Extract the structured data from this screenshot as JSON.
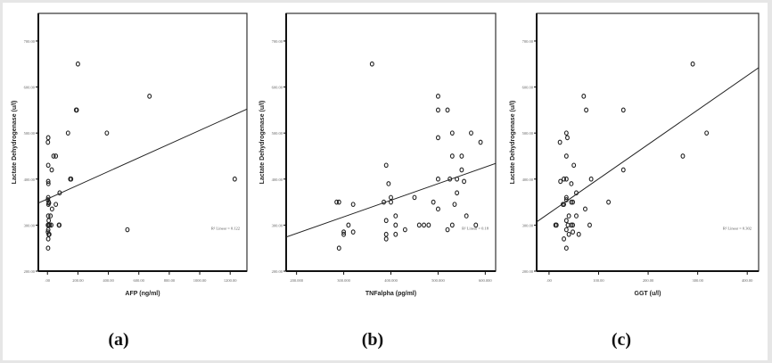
{
  "figure": {
    "captions": [
      "(a)",
      "(b)",
      "(c)"
    ]
  },
  "chart_data": [
    {
      "type": "scatter",
      "title": "",
      "panel": "(a)",
      "xlabel": "AFP (ng/ml)",
      "ylabel": "Lactate Dehydrogenase (u/l)",
      "xlim": [
        -60,
        1310
      ],
      "ylim": [
        200,
        760
      ],
      "xticks": [
        0,
        200,
        400,
        600,
        800,
        1000,
        1200
      ],
      "xtick_labels": [
        ".00",
        "200.00",
        "400.00",
        "600.00",
        "800.00",
        "1000.00",
        "1200.00"
      ],
      "yticks": [
        200,
        300,
        400,
        500,
        600,
        700
      ],
      "ytick_labels": [
        "200.00",
        "300.00",
        "400.00",
        "500.00",
        "600.00",
        "700.00"
      ],
      "annotation": "R² Linear = 0.122",
      "fit_line": {
        "x": [
          -60,
          1310
        ],
        "y": [
          348,
          552
        ]
      },
      "points": [
        [
          200,
          650
        ],
        [
          670,
          580
        ],
        [
          188,
          550
        ],
        [
          192,
          550
        ],
        [
          135,
          500
        ],
        [
          390,
          500
        ],
        [
          525,
          290
        ],
        [
          1230,
          400
        ],
        [
          5,
          490
        ],
        [
          3,
          480
        ],
        [
          40,
          450
        ],
        [
          55,
          450
        ],
        [
          28,
          420
        ],
        [
          5,
          430
        ],
        [
          150,
          400
        ],
        [
          155,
          400
        ],
        [
          5,
          395
        ],
        [
          6,
          390
        ],
        [
          80,
          370
        ],
        [
          5,
          360
        ],
        [
          3,
          355
        ],
        [
          8,
          350
        ],
        [
          10,
          348
        ],
        [
          6,
          345
        ],
        [
          55,
          345
        ],
        [
          30,
          335
        ],
        [
          5,
          320
        ],
        [
          20,
          320
        ],
        [
          8,
          310
        ],
        [
          3,
          300
        ],
        [
          8,
          300
        ],
        [
          15,
          300
        ],
        [
          25,
          300
        ],
        [
          75,
          300
        ],
        [
          78,
          300
        ],
        [
          5,
          290
        ],
        [
          3,
          285
        ],
        [
          8,
          280
        ],
        [
          12,
          280
        ],
        [
          5,
          270
        ],
        [
          4,
          250
        ]
      ]
    },
    {
      "type": "scatter",
      "title": "",
      "panel": "(b)",
      "xlabel": "TNFalpha (pg/ml)",
      "ylabel": "Lactate Dehydrogenase (u/l)",
      "xlim": [
        178,
        622
      ],
      "ylim": [
        200,
        760
      ],
      "xticks": [
        200,
        300,
        400,
        500,
        600
      ],
      "xtick_labels": [
        "200.000",
        "300.000",
        "400.000",
        "500.000",
        "600.000"
      ],
      "yticks": [
        200,
        300,
        400,
        500,
        600,
        700
      ],
      "ytick_labels": [
        "200.00",
        "300.00",
        "400.00",
        "500.00",
        "600.00",
        "700.00"
      ],
      "annotation": "R² Linear = 0.18",
      "fit_line": {
        "x": [
          178,
          622
        ],
        "y": [
          274,
          434
        ]
      },
      "points": [
        [
          360,
          650
        ],
        [
          500,
          580
        ],
        [
          500,
          550
        ],
        [
          520,
          550
        ],
        [
          530,
          500
        ],
        [
          570,
          500
        ],
        [
          500,
          490
        ],
        [
          590,
          480
        ],
        [
          530,
          450
        ],
        [
          550,
          450
        ],
        [
          390,
          430
        ],
        [
          550,
          420
        ],
        [
          500,
          400
        ],
        [
          525,
          400
        ],
        [
          540,
          400
        ],
        [
          555,
          395
        ],
        [
          395,
          390
        ],
        [
          540,
          370
        ],
        [
          400,
          360
        ],
        [
          450,
          360
        ],
        [
          285,
          350
        ],
        [
          290,
          350
        ],
        [
          385,
          350
        ],
        [
          400,
          350
        ],
        [
          490,
          350
        ],
        [
          320,
          345
        ],
        [
          535,
          345
        ],
        [
          500,
          335
        ],
        [
          410,
          320
        ],
        [
          560,
          320
        ],
        [
          390,
          310
        ],
        [
          310,
          300
        ],
        [
          410,
          300
        ],
        [
          460,
          300
        ],
        [
          470,
          300
        ],
        [
          480,
          300
        ],
        [
          530,
          300
        ],
        [
          580,
          300
        ],
        [
          430,
          290
        ],
        [
          520,
          290
        ],
        [
          320,
          285
        ],
        [
          300,
          285
        ],
        [
          300,
          280
        ],
        [
          390,
          280
        ],
        [
          410,
          280
        ],
        [
          390,
          270
        ],
        [
          290,
          250
        ]
      ]
    },
    {
      "type": "scatter",
      "title": "",
      "panel": "(c)",
      "xlabel": "GGT (u/l)",
      "ylabel": "Lactate Dehydrogenase (u/l)",
      "xlim": [
        -25,
        423
      ],
      "ylim": [
        200,
        760
      ],
      "xticks": [
        0,
        100,
        200,
        300,
        400
      ],
      "xtick_labels": [
        ".00",
        "100.00",
        "200.00",
        "300.00",
        "400.00"
      ],
      "yticks": [
        200,
        300,
        400,
        500,
        600,
        700
      ],
      "ytick_labels": [
        "200.00",
        "300.00",
        "400.00",
        "500.00",
        "600.00",
        "700.00"
      ],
      "annotation": "R² Linear = 0.302",
      "fit_line": {
        "x": [
          -25,
          423
        ],
        "y": [
          307,
          642
        ]
      },
      "points": [
        [
          290,
          650
        ],
        [
          70,
          580
        ],
        [
          75,
          550
        ],
        [
          150,
          550
        ],
        [
          35,
          500
        ],
        [
          318,
          500
        ],
        [
          37,
          490
        ],
        [
          22,
          480
        ],
        [
          270,
          450
        ],
        [
          35,
          450
        ],
        [
          50,
          430
        ],
        [
          150,
          420
        ],
        [
          85,
          400
        ],
        [
          30,
          400
        ],
        [
          35,
          400
        ],
        [
          23,
          395
        ],
        [
          45,
          390
        ],
        [
          55,
          370
        ],
        [
          35,
          360
        ],
        [
          35,
          355
        ],
        [
          45,
          350
        ],
        [
          48,
          350
        ],
        [
          120,
          350
        ],
        [
          30,
          345
        ],
        [
          28,
          345
        ],
        [
          73,
          335
        ],
        [
          40,
          320
        ],
        [
          55,
          320
        ],
        [
          35,
          310
        ],
        [
          13,
          300
        ],
        [
          15,
          300
        ],
        [
          38,
          300
        ],
        [
          45,
          300
        ],
        [
          48,
          300
        ],
        [
          82,
          300
        ],
        [
          35,
          290
        ],
        [
          48,
          285
        ],
        [
          40,
          280
        ],
        [
          60,
          280
        ],
        [
          30,
          270
        ],
        [
          35,
          250
        ]
      ]
    }
  ]
}
